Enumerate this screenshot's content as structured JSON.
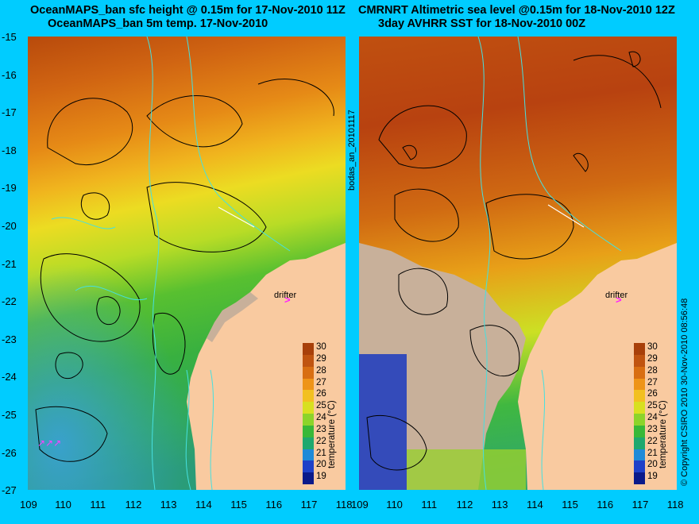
{
  "left_panel": {
    "title_line1": "OceanMAPS_ban sfc height @ 0.15m for 17-Nov-2010 11Z",
    "title_line2": "OceanMAPS_ban 5m temp. 17-Nov-2010",
    "drifter_label": "drifter"
  },
  "right_panel": {
    "title_line1": "CMRNRT Altimetric sea level  @0.15m  for 18-Nov-2010 12Z",
    "title_line2": "3day AVHRR SST for 18-Nov-2010 00Z",
    "drifter_label": "drifter"
  },
  "y_ticks": [
    "-15",
    "-16",
    "-17",
    "-18",
    "-19",
    "-20",
    "-21",
    "-22",
    "-23",
    "-24",
    "-25",
    "-26",
    "-27"
  ],
  "x_ticks": [
    "109",
    "110",
    "111",
    "112",
    "113",
    "114",
    "115",
    "116",
    "117",
    "118"
  ],
  "colorbar": {
    "title": "temperature (°C)",
    "labels": [
      "30",
      "29",
      "28",
      "27",
      "26",
      "25",
      "24",
      "23",
      "22",
      "21",
      "20",
      "19"
    ],
    "colors": [
      "#a8400a",
      "#c05410",
      "#d86e12",
      "#ee9418",
      "#f2c020",
      "#d8e020",
      "#8cd42a",
      "#38b838",
      "#1ea86e",
      "#1e8ad8",
      "#1e40c8",
      "#0a1a8a"
    ]
  },
  "side_text_mid": "bodas_an_20101117",
  "side_text_right": "© Copyright CSIRO 2010   30-Nov-2010 08:56:48"
}
